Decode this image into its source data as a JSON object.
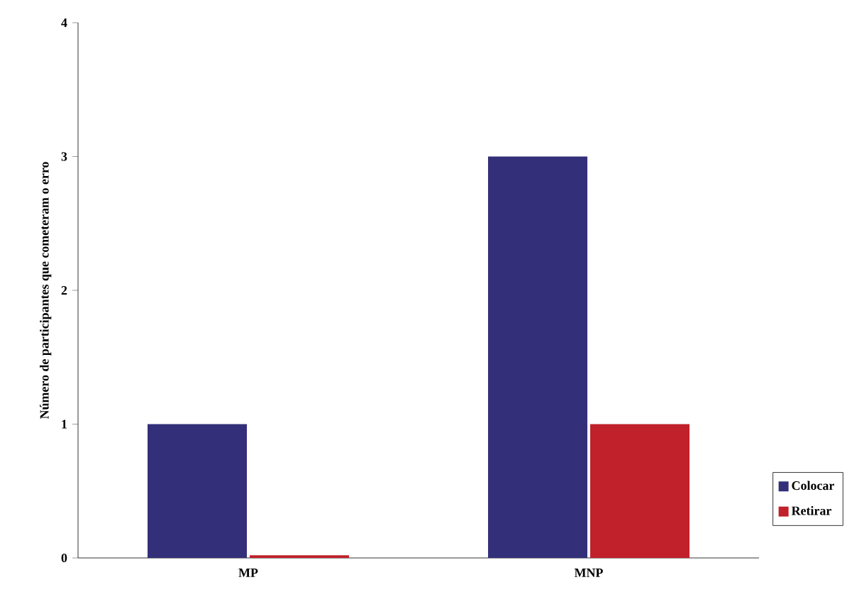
{
  "chart_data": {
    "type": "bar",
    "ylabel": "Número de participantes que cometeram o erro",
    "categories": [
      "MP",
      "MNP"
    ],
    "series": [
      {
        "name": "Colocar",
        "color": "#333079",
        "values": [
          1,
          3
        ]
      },
      {
        "name": "Retirar",
        "color": "#c0212a",
        "values": [
          0.02,
          1
        ]
      }
    ],
    "ylim": [
      0,
      4
    ],
    "yticks": [
      0,
      1,
      2,
      3,
      4
    ],
    "grid": false,
    "legend": "right"
  }
}
